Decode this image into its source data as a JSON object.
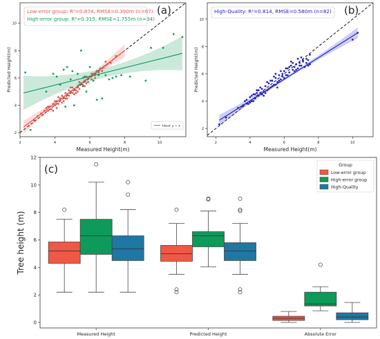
{
  "chart_data": [
    {
      "type": "scatter",
      "panel_label": "(a)",
      "xlabel": "Measured Height(m)",
      "ylabel": "Predicted Height(m)",
      "xlim": [
        2,
        11.5
      ],
      "ylim": [
        1.7,
        11.5
      ],
      "x_ticks": [
        "2",
        "4",
        "6",
        "8",
        "10"
      ],
      "y_ticks": [
        "2",
        "4",
        "6",
        "8",
        "10"
      ],
      "annotations": [
        {
          "text": "Low-error group: R²=0.874, RMSE=0.390m (n=67)",
          "color": "#e8554e"
        },
        {
          "text": "High-error group: R²=0.315, RMSE=1.755m (n=34)",
          "color": "#149c5c"
        }
      ],
      "legend": {
        "placement": "bottom-right",
        "label": "Ideal: y = x"
      },
      "series": [
        {
          "name": "Low-error group",
          "color": "#e8554e",
          "fit": {
            "x": [
              2.2,
              8.0
            ],
            "y": [
              2.4,
              8.0
            ]
          },
          "points": [
            [
              2.5,
              2.5
            ],
            [
              2.8,
              2.9
            ],
            [
              3.0,
              3.2
            ],
            [
              3.2,
              3.4
            ],
            [
              3.3,
              3.3
            ],
            [
              3.5,
              3.8
            ],
            [
              3.6,
              3.6
            ],
            [
              3.7,
              3.9
            ],
            [
              3.8,
              3.7
            ],
            [
              3.9,
              4.1
            ],
            [
              4.0,
              4.0
            ],
            [
              4.1,
              4.3
            ],
            [
              4.2,
              4.1
            ],
            [
              4.3,
              4.4
            ],
            [
              4.4,
              4.2
            ],
            [
              4.5,
              4.6
            ],
            [
              4.6,
              4.5
            ],
            [
              4.7,
              4.8
            ],
            [
              4.8,
              4.7
            ],
            [
              4.9,
              5.0
            ],
            [
              5.0,
              4.9
            ],
            [
              5.1,
              5.2
            ],
            [
              5.2,
              5.1
            ],
            [
              5.3,
              5.4
            ],
            [
              5.4,
              5.2
            ],
            [
              5.5,
              5.6
            ],
            [
              5.6,
              5.5
            ],
            [
              5.7,
              5.8
            ],
            [
              5.8,
              5.6
            ],
            [
              5.9,
              6.0
            ],
            [
              6.0,
              6.1
            ],
            [
              6.1,
              5.9
            ],
            [
              6.2,
              6.3
            ],
            [
              6.3,
              6.2
            ],
            [
              6.4,
              6.5
            ],
            [
              6.5,
              6.4
            ],
            [
              6.6,
              6.7
            ],
            [
              6.8,
              6.8
            ],
            [
              7.0,
              7.0
            ],
            [
              7.2,
              7.1
            ],
            [
              7.5,
              7.6
            ],
            [
              4.2,
              4.6
            ],
            [
              4.5,
              4.3
            ],
            [
              4.9,
              5.3
            ],
            [
              5.2,
              4.9
            ],
            [
              5.6,
              6.0
            ],
            [
              5.9,
              5.7
            ],
            [
              3.6,
              3.9
            ],
            [
              4.6,
              4.9
            ],
            [
              5.4,
              5.7
            ],
            [
              6.1,
              6.3
            ],
            [
              4.1,
              3.8
            ],
            [
              4.8,
              5.1
            ],
            [
              5.0,
              5.3
            ],
            [
              5.8,
              6.1
            ],
            [
              3.9,
              3.6
            ],
            [
              4.3,
              4.5
            ],
            [
              4.7,
              4.5
            ],
            [
              5.3,
              5.0
            ],
            [
              5.7,
              5.4
            ],
            [
              6.3,
              6.0
            ],
            [
              6.7,
              6.5
            ],
            [
              3.4,
              3.6
            ],
            [
              4.0,
              4.3
            ],
            [
              4.4,
              4.7
            ],
            [
              5.1,
              4.8
            ],
            [
              6.9,
              7.2
            ]
          ]
        },
        {
          "name": "High-error group",
          "color": "#149c5c",
          "fit": {
            "x": [
              2.2,
              11.3
            ],
            "y": [
              4.9,
              7.8
            ]
          },
          "points": [
            [
              2.3,
              6.4
            ],
            [
              2.6,
              2.2
            ],
            [
              3.5,
              5.0
            ],
            [
              3.9,
              6.3
            ],
            [
              4.1,
              6.1
            ],
            [
              4.3,
              5.5
            ],
            [
              4.5,
              6.6
            ],
            [
              4.6,
              3.9
            ],
            [
              4.7,
              6.8
            ],
            [
              4.9,
              5.9
            ],
            [
              5.0,
              6.5
            ],
            [
              5.1,
              4.0
            ],
            [
              5.3,
              6.3
            ],
            [
              5.4,
              5.5
            ],
            [
              5.5,
              8.0
            ],
            [
              5.6,
              5.4
            ],
            [
              5.7,
              6.1
            ],
            [
              5.8,
              5.0
            ],
            [
              6.0,
              6.8
            ],
            [
              6.2,
              5.8
            ],
            [
              6.4,
              4.4
            ],
            [
              6.5,
              6.2
            ],
            [
              6.7,
              4.5
            ],
            [
              6.9,
              6.2
            ],
            [
              7.1,
              5.9
            ],
            [
              7.3,
              6.0
            ],
            [
              7.5,
              6.1
            ],
            [
              7.8,
              6.2
            ],
            [
              8.3,
              6.1
            ],
            [
              9.2,
              5.8
            ],
            [
              9.5,
              8.2
            ],
            [
              10.2,
              8.2
            ],
            [
              10.8,
              9.2
            ],
            [
              11.3,
              9.0
            ]
          ]
        }
      ]
    },
    {
      "type": "scatter",
      "panel_label": "(b)",
      "xlabel": "Measured Height(m)",
      "ylabel": "Predicted Height(m)",
      "xlim": [
        1.5,
        11.2
      ],
      "ylim": [
        1.4,
        11.2
      ],
      "x_ticks": [
        "2",
        "4",
        "6",
        "8",
        "10"
      ],
      "y_ticks": [
        "2",
        "4",
        "6",
        "8",
        "10"
      ],
      "annotations": [
        {
          "text": "High-Quality: R²=0.814, RMSE=0.580m (n=82)",
          "color": "#2222cc"
        }
      ],
      "series": [
        {
          "name": "High-Quality",
          "color": "#2222cc",
          "fit": {
            "x": [
              2.2,
              10.3
            ],
            "y": [
              2.6,
              9.0
            ]
          },
          "points": [
            [
              2.2,
              2.3
            ],
            [
              2.6,
              2.8
            ],
            [
              3.3,
              3.5
            ],
            [
              3.6,
              3.7
            ],
            [
              3.7,
              4.0
            ],
            [
              3.9,
              3.8
            ],
            [
              4.0,
              4.3
            ],
            [
              4.1,
              4.0
            ],
            [
              4.2,
              4.5
            ],
            [
              4.3,
              4.2
            ],
            [
              4.4,
              4.8
            ],
            [
              4.5,
              4.4
            ],
            [
              4.6,
              4.6
            ],
            [
              4.7,
              4.9
            ],
            [
              4.8,
              4.7
            ],
            [
              4.9,
              5.1
            ],
            [
              5.0,
              4.8
            ],
            [
              5.1,
              5.3
            ],
            [
              5.2,
              5.0
            ],
            [
              5.3,
              5.5
            ],
            [
              5.4,
              5.2
            ],
            [
              5.5,
              5.7
            ],
            [
              5.6,
              5.4
            ],
            [
              5.7,
              5.9
            ],
            [
              5.8,
              5.6
            ],
            [
              5.9,
              5.8
            ],
            [
              6.0,
              6.2
            ],
            [
              6.1,
              5.9
            ],
            [
              6.2,
              6.4
            ],
            [
              6.3,
              6.1
            ],
            [
              6.4,
              6.6
            ],
            [
              6.5,
              6.3
            ],
            [
              6.6,
              6.5
            ],
            [
              6.7,
              6.7
            ],
            [
              6.8,
              6.4
            ],
            [
              6.9,
              6.8
            ],
            [
              7.0,
              6.6
            ],
            [
              7.1,
              6.9
            ],
            [
              7.2,
              6.5
            ],
            [
              7.3,
              6.8
            ],
            [
              7.4,
              7.0
            ],
            [
              7.5,
              6.7
            ],
            [
              4.2,
              4.0
            ],
            [
              4.6,
              5.0
            ],
            [
              5.0,
              5.4
            ],
            [
              5.4,
              5.8
            ],
            [
              5.8,
              6.2
            ],
            [
              6.2,
              5.9
            ],
            [
              4.8,
              4.4
            ],
            [
              5.6,
              5.0
            ],
            [
              6.4,
              6.9
            ],
            [
              3.8,
              4.1
            ],
            [
              4.4,
              4.6
            ],
            [
              5.2,
              5.5
            ],
            [
              6.0,
              5.7
            ],
            [
              6.6,
              6.2
            ],
            [
              7.0,
              7.2
            ],
            [
              4.0,
              3.9
            ],
            [
              4.9,
              4.6
            ],
            [
              5.3,
              5.1
            ],
            [
              5.7,
              5.5
            ],
            [
              6.1,
              6.4
            ],
            [
              6.5,
              6.8
            ],
            [
              6.9,
              6.6
            ],
            [
              7.3,
              7.1
            ],
            [
              4.5,
              4.8
            ],
            [
              5.1,
              4.9
            ],
            [
              5.5,
              5.2
            ],
            [
              5.9,
              6.0
            ],
            [
              6.3,
              6.5
            ],
            [
              6.7,
              6.3
            ],
            [
              7.1,
              7.0
            ],
            [
              4.3,
              4.5
            ],
            [
              4.7,
              4.5
            ],
            [
              5.5,
              6.0
            ],
            [
              6.8,
              7.1
            ],
            [
              3.5,
              3.6
            ],
            [
              4.1,
              4.4
            ],
            [
              7.4,
              6.6
            ],
            [
              7.5,
              7.4
            ],
            [
              10.0,
              8.5
            ],
            [
              10.3,
              9.0
            ]
          ]
        }
      ]
    },
    {
      "type": "box",
      "panel_label": "(c)",
      "ylabel": "Tree height (m)",
      "ylim": [
        -0.4,
        12
      ],
      "y_ticks": [
        "0",
        "2",
        "4",
        "6",
        "8",
        "10",
        "12"
      ],
      "categories": [
        "Measured Height",
        "Predicted Height",
        "Absolute Error"
      ],
      "legend": {
        "placement": "top-right",
        "title": "Group"
      },
      "series": [
        {
          "name": "Low-error group",
          "color": "#ef5845",
          "boxes": [
            {
              "q1": 4.3,
              "median": 5.2,
              "q3": 5.85,
              "whisker_low": 2.2,
              "whisker_high": 7.5,
              "outliers": [
                8.2
              ]
            },
            {
              "q1": 4.45,
              "median": 5.0,
              "q3": 5.6,
              "whisker_low": 3.5,
              "whisker_high": 7.2,
              "outliers": [
                8.2,
                2.4,
                2.2
              ]
            },
            {
              "q1": 0.15,
              "median": 0.3,
              "q3": 0.45,
              "whisker_low": 0.0,
              "whisker_high": 0.8,
              "outliers": []
            }
          ]
        },
        {
          "name": "High-error group",
          "color": "#0e9a5a",
          "boxes": [
            {
              "q1": 4.95,
              "median": 6.3,
              "q3": 7.5,
              "whisker_low": 2.2,
              "whisker_high": 10.2,
              "outliers": [
                11.5
              ]
            },
            {
              "q1": 5.5,
              "median": 6.3,
              "q3": 6.6,
              "whisker_low": 4.05,
              "whisker_high": 8.1,
              "outliers": [
                9.0,
                8.95
              ]
            },
            {
              "q1": 1.2,
              "median": 1.35,
              "q3": 2.2,
              "whisker_low": 0.85,
              "whisker_high": 2.6,
              "outliers": [
                4.2
              ]
            }
          ]
        },
        {
          "name": "High-Quality",
          "color": "#1f77a4",
          "boxes": [
            {
              "q1": 4.5,
              "median": 5.35,
              "q3": 6.3,
              "whisker_low": 2.2,
              "whisker_high": 8.2,
              "outliers": [
                10.2,
                9.3
              ]
            },
            {
              "q1": 4.5,
              "median": 5.2,
              "q3": 5.8,
              "whisker_low": 3.5,
              "whisker_high": 7.2,
              "outliers": [
                9.0,
                8.2,
                8.1,
                2.4,
                2.2
              ]
            },
            {
              "q1": 0.2,
              "median": 0.4,
              "q3": 0.7,
              "whisker_low": 0.0,
              "whisker_high": 1.45,
              "outliers": []
            }
          ]
        }
      ]
    }
  ]
}
